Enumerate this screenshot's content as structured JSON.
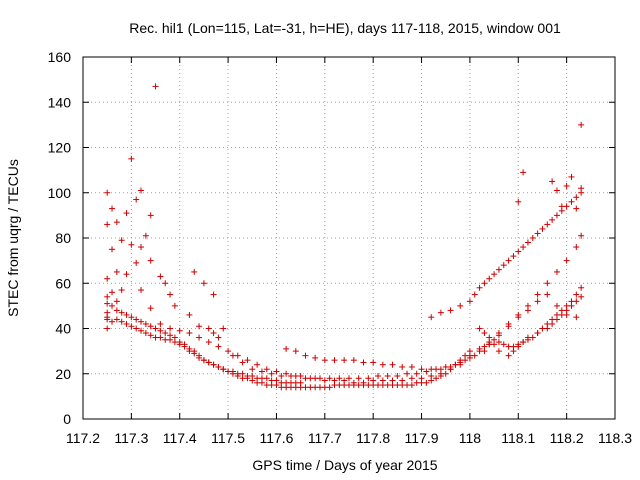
{
  "chart_data": {
    "type": "scatter",
    "title": "Rec. hil1 (Lon=115, Lat=-31, h=HE), days 117-118, 2015, window 001",
    "xlabel": "GPS time / Days of year 2015",
    "ylabel": "STEC from uqrg / TECUs",
    "xlim": [
      117.2,
      118.3
    ],
    "ylim": [
      0,
      160
    ],
    "xticks": [
      117.2,
      117.3,
      117.4,
      117.5,
      117.6,
      117.7,
      117.8,
      117.9,
      118.0,
      118.1,
      118.2,
      118.3
    ],
    "xtick_labels": [
      "117.2",
      "117.3",
      "117.4",
      "117.5",
      "117.6",
      "117.7",
      "117.8",
      "117.9",
      "118",
      "118.1",
      "118.2",
      "118.3"
    ],
    "yticks": [
      0,
      20,
      40,
      60,
      80,
      100,
      120,
      140,
      160
    ],
    "ytick_labels": [
      "0",
      "20",
      "40",
      "60",
      "80",
      "100",
      "120",
      "140",
      "160"
    ],
    "grid": true,
    "marker": "+",
    "color": "#cc0000",
    "series": [
      {
        "name": "STEC",
        "x": [
          117.25,
          117.25,
          117.25,
          117.25,
          117.25,
          117.25,
          117.25,
          117.26,
          117.26,
          117.26,
          117.27,
          117.27,
          117.27,
          117.28,
          117.28,
          117.29,
          117.29,
          117.3,
          117.3,
          117.31,
          117.31,
          117.32,
          117.32,
          117.33,
          117.34,
          117.34,
          117.35,
          117.36,
          117.37,
          117.38,
          117.39,
          117.42,
          117.44,
          117.46,
          117.47,
          117.48,
          117.25,
          117.26,
          117.27,
          117.28,
          117.29,
          117.3,
          117.31,
          117.32,
          117.33,
          117.34,
          117.35,
          117.36,
          117.37,
          117.38,
          117.39,
          117.4,
          117.41,
          117.42,
          117.43,
          117.44,
          117.45,
          117.46,
          117.47,
          117.48,
          117.49,
          117.5,
          117.51,
          117.52,
          117.53,
          117.54,
          117.55,
          117.56,
          117.57,
          117.58,
          117.59,
          117.6,
          117.61,
          117.62,
          117.63,
          117.64,
          117.65,
          117.25,
          117.26,
          117.27,
          117.28,
          117.29,
          117.3,
          117.31,
          117.32,
          117.33,
          117.34,
          117.35,
          117.36,
          117.37,
          117.38,
          117.39,
          117.4,
          117.41,
          117.42,
          117.43,
          117.44,
          117.45,
          117.46,
          117.47,
          117.48,
          117.49,
          117.5,
          117.51,
          117.52,
          117.53,
          117.54,
          117.55,
          117.56,
          117.57,
          117.58,
          117.59,
          117.6,
          117.61,
          117.62,
          117.63,
          117.64,
          117.65,
          117.66,
          117.67,
          117.68,
          117.69,
          117.7,
          117.71,
          117.72,
          117.73,
          117.74,
          117.75,
          117.76,
          117.77,
          117.78,
          117.79,
          117.8,
          117.81,
          117.82,
          117.83,
          117.84,
          117.85,
          117.86,
          117.87,
          117.88,
          117.89,
          117.9,
          117.91,
          117.92,
          117.93,
          117.94,
          117.95,
          117.96,
          117.97,
          117.98,
          117.99,
          118.0,
          117.32,
          117.34,
          117.36,
          117.38,
          117.4,
          117.42,
          117.44,
          117.46,
          117.48,
          117.5,
          117.52,
          117.54,
          117.56,
          117.58,
          117.6,
          117.62,
          117.64,
          117.66,
          117.68,
          117.7,
          117.72,
          117.74,
          117.76,
          117.78,
          117.8,
          117.82,
          117.84,
          117.86,
          117.88,
          117.9,
          117.92,
          117.94,
          117.96,
          117.98,
          118.0,
          118.02,
          118.04,
          118.06,
          118.08,
          118.1,
          118.12,
          118.14,
          118.16,
          118.18,
          118.2,
          118.22,
          117.43,
          117.45,
          117.47,
          117.49,
          117.51,
          117.53,
          117.55,
          117.57,
          117.59,
          117.61,
          117.63,
          117.65,
          117.67,
          117.69,
          117.71,
          117.73,
          117.75,
          117.77,
          117.79,
          117.81,
          117.83,
          117.85,
          117.87,
          117.89,
          117.91,
          117.93,
          117.95,
          117.97,
          117.99,
          118.01,
          118.03,
          118.05,
          117.62,
          117.64,
          117.66,
          117.68,
          117.7,
          117.72,
          117.74,
          117.76,
          117.78,
          117.8,
          117.82,
          117.84,
          117.86,
          117.88,
          117.9,
          117.92,
          117.94,
          117.96,
          117.98,
          118.0,
          118.02,
          118.04,
          118.06,
          118.08,
          118.1,
          118.12,
          118.14,
          118.16,
          118.18,
          118.2,
          118.22,
          118.23,
          117.92,
          117.94,
          117.96,
          117.98,
          118.0,
          118.01,
          118.02,
          118.03,
          118.04,
          118.05,
          118.06,
          118.07,
          118.08,
          118.09,
          118.1,
          118.11,
          118.12,
          118.13,
          118.14,
          118.15,
          118.16,
          118.17,
          118.18,
          118.19,
          118.2,
          118.21,
          118.22,
          118.23,
          118.02,
          118.03,
          118.04,
          118.05,
          118.06,
          118.07,
          118.08,
          118.09,
          118.1,
          118.11,
          118.12,
          118.13,
          118.14,
          118.15,
          118.16,
          118.17,
          118.18,
          118.19,
          118.2,
          118.21,
          118.22,
          118.23,
          118.03,
          118.04,
          118.06,
          118.08,
          118.09,
          118.1,
          118.11,
          118.12,
          118.14,
          118.16,
          118.17,
          118.18,
          118.19,
          118.2,
          118.21,
          118.22,
          118.23,
          118.1,
          118.11,
          118.17,
          118.18,
          118.19,
          118.2,
          118.21,
          118.22,
          118.23,
          118.23
        ],
        "y": [
          100,
          86,
          62,
          51,
          47,
          44,
          40,
          93,
          75,
          56,
          87,
          65,
          52,
          79,
          57,
          91,
          64,
          115,
          77,
          97,
          69,
          101,
          76,
          81,
          90,
          70,
          147,
          63,
          60,
          55,
          50,
          46,
          41,
          40,
          38,
          36,
          45,
          43,
          44,
          43,
          42,
          41,
          40,
          39,
          38,
          37,
          36,
          36,
          35,
          35,
          34,
          33,
          32,
          30,
          29,
          27,
          26,
          25,
          24,
          23,
          22,
          21,
          21,
          20,
          20,
          19,
          19,
          18,
          18,
          18,
          17,
          17,
          16,
          16,
          16,
          16,
          16,
          54,
          50,
          48,
          47,
          46,
          45,
          44,
          43,
          42,
          41,
          40,
          39,
          38,
          37,
          36,
          34,
          33,
          31,
          30,
          28,
          26,
          25,
          24,
          23,
          22,
          21,
          20,
          19,
          18,
          18,
          17,
          16,
          16,
          15,
          15,
          15,
          14,
          14,
          14,
          14,
          14,
          14,
          14,
          14,
          14,
          14,
          14,
          15,
          15,
          15,
          15,
          15,
          15,
          15,
          15,
          15,
          15,
          15,
          15,
          15,
          15,
          15,
          15,
          15,
          16,
          16,
          16,
          17,
          18,
          19,
          20,
          22,
          24,
          26,
          28,
          30,
          57,
          49,
          42,
          40,
          39,
          38,
          36,
          34,
          32,
          30,
          28,
          26,
          24,
          22,
          21,
          20,
          19,
          18,
          18,
          17,
          17,
          17,
          16,
          16,
          17,
          17,
          17,
          17,
          18,
          18,
          19,
          20,
          22,
          24,
          27,
          30,
          33,
          37,
          41,
          45,
          48,
          52,
          55,
          50,
          46,
          45,
          65,
          60,
          55,
          40,
          28,
          25,
          22,
          21,
          20,
          19,
          19,
          19,
          18,
          18,
          18,
          18,
          18,
          18,
          18,
          19,
          19,
          19,
          20,
          20,
          21,
          22,
          23,
          24,
          26,
          28,
          30,
          33,
          31,
          30,
          28,
          27,
          26,
          26,
          26,
          26,
          25,
          25,
          24,
          24,
          23,
          23,
          22,
          22,
          22,
          23,
          25,
          28,
          31,
          34,
          38,
          42,
          46,
          50,
          55,
          60,
          65,
          70,
          76,
          81,
          45,
          47,
          48,
          50,
          52,
          55,
          58,
          60,
          62,
          64,
          66,
          68,
          70,
          72,
          74,
          76,
          78,
          80,
          82,
          84,
          86,
          88,
          90,
          92,
          94,
          96,
          98,
          100,
          40,
          38,
          36,
          35,
          34,
          33,
          32,
          32,
          33,
          34,
          35,
          36,
          38,
          40,
          42,
          44,
          46,
          48,
          50,
          52,
          55,
          58,
          32,
          33,
          30,
          28,
          30,
          32,
          34,
          36,
          38,
          40,
          42,
          44,
          46,
          48,
          50,
          52,
          54,
          96,
          109,
          105,
          101,
          94,
          103,
          107,
          93,
          102,
          130
        ]
      }
    ]
  }
}
